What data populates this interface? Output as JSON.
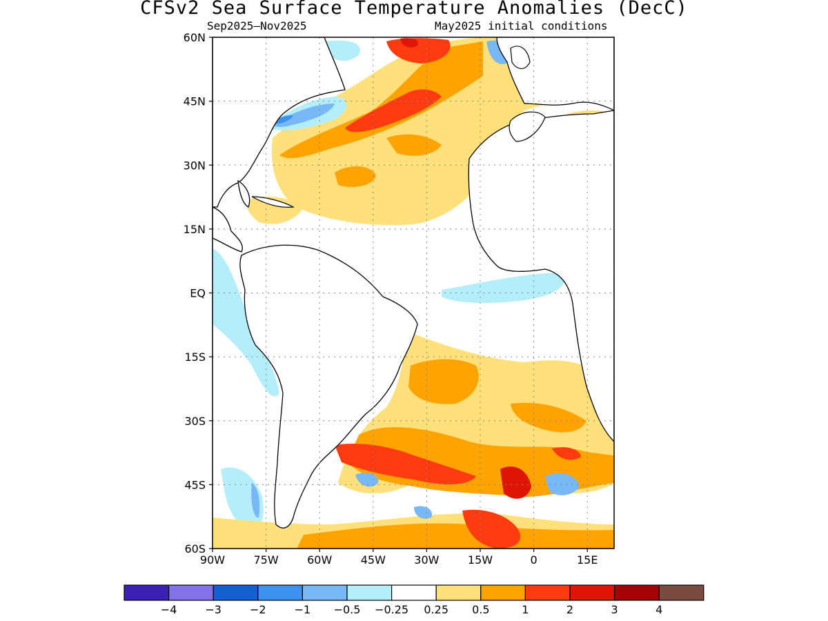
{
  "title": "CFSv2 Sea Surface Temperature Anomalies (DecC)",
  "subtitle_left": "Sep2025–Nov2025",
  "subtitle_right": "May2025 initial conditions",
  "lat_labels": [
    "60N",
    "45N",
    "30N",
    "15N",
    "EQ",
    "15S",
    "30S",
    "45S",
    "60S"
  ],
  "lon_labels": [
    "90W",
    "75W",
    "60W",
    "45W",
    "30W",
    "15W",
    "0",
    "15E"
  ],
  "colorbar": {
    "colors": [
      "#3c1fb5",
      "#8472e8",
      "#1560d0",
      "#3d92f0",
      "#78b8f7",
      "#b4eefa",
      "#ffffff",
      "#ffe07b",
      "#ffa300",
      "#ff3b0f",
      "#df1505",
      "#a50303",
      "#7a4b3e"
    ],
    "tick_labels": [
      "−4",
      "−3",
      "−2",
      "−1",
      "−0.5",
      "−0.25",
      "0.25",
      "0.5",
      "1",
      "2",
      "3",
      "4"
    ]
  },
  "anomaly_colors": {
    "light_yellow": "#ffe07b",
    "orange": "#ffa300",
    "red_orange": "#ff3b0f",
    "red": "#df1505",
    "dark_red": "#a50303",
    "cyan": "#b4eefa",
    "light_blue": "#78b8f7",
    "blue": "#3d92f0",
    "dark_blue": "#1560d0"
  }
}
